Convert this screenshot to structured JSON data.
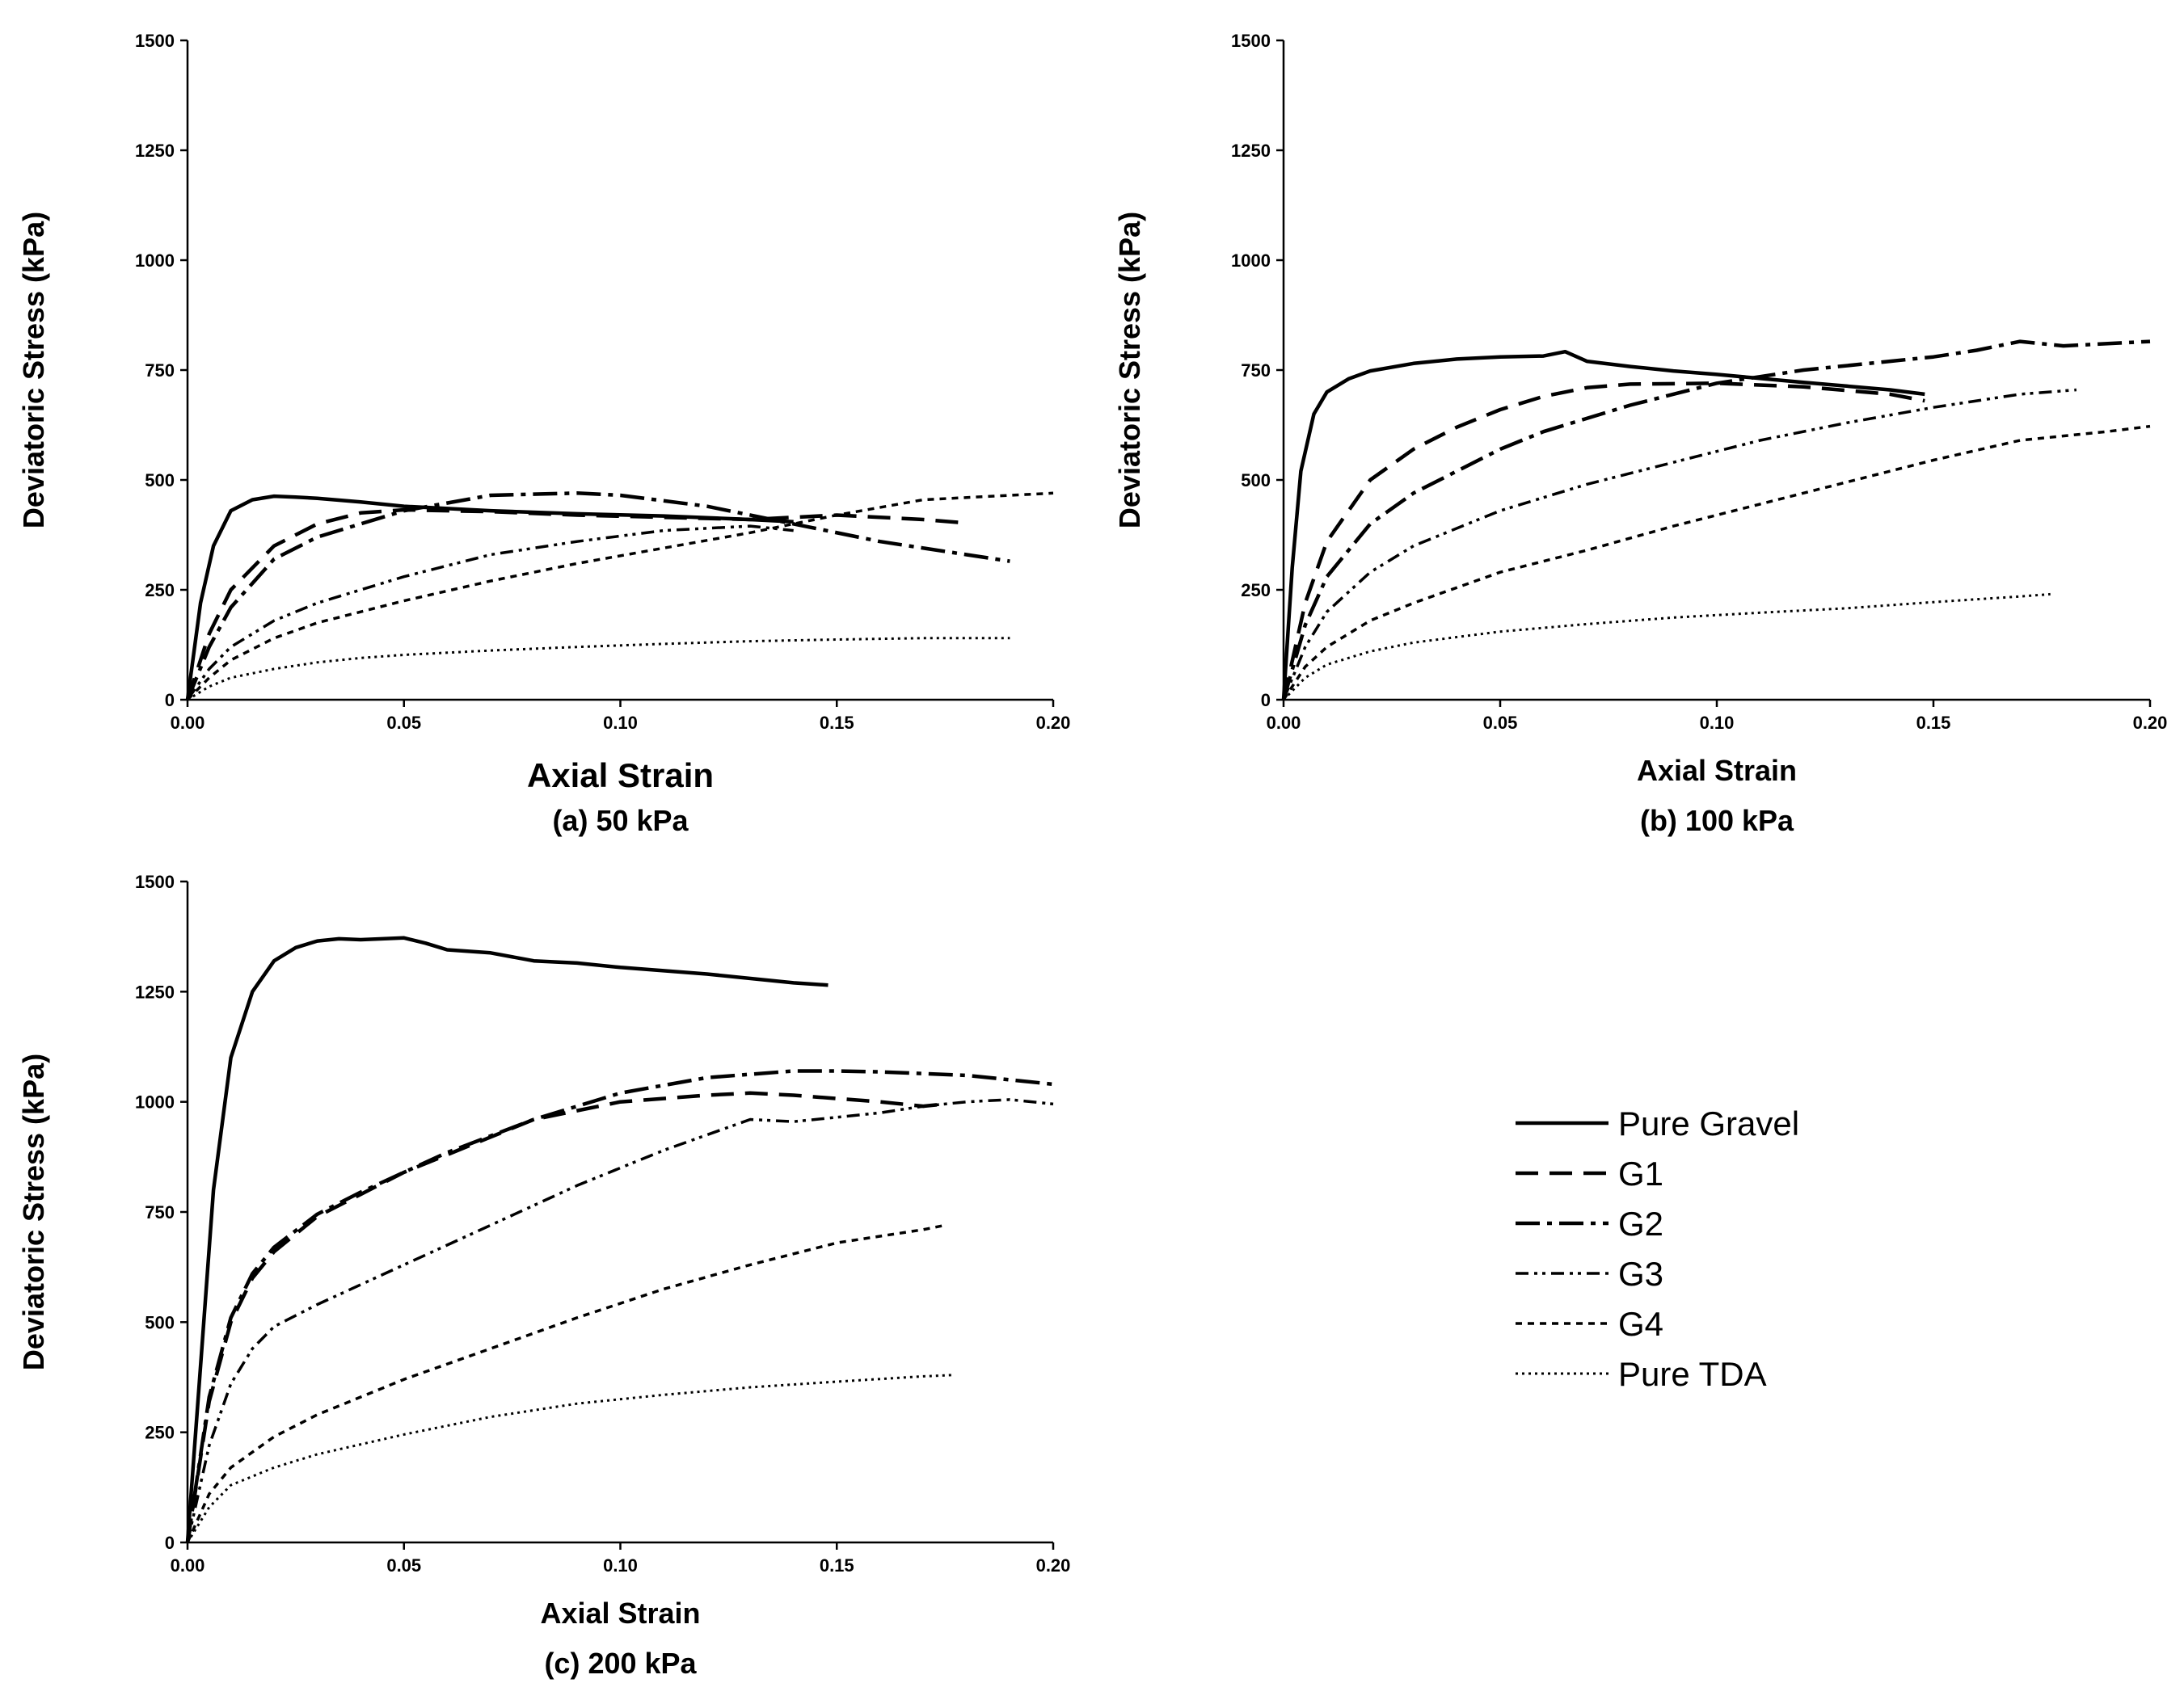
{
  "legend": [
    {
      "id": "pure_gravel",
      "label": "Pure Gravel",
      "dash": "",
      "width": 4.5
    },
    {
      "id": "g1",
      "label": "G1",
      "dash": "28 14",
      "width": 4.5
    },
    {
      "id": "g2",
      "label": "G2",
      "dash": "30 9 6 9",
      "width": 4.5
    },
    {
      "id": "g3",
      "label": "G3",
      "dash": "16 7 4 6 4 7",
      "width": 3.5
    },
    {
      "id": "g4",
      "label": "G4",
      "dash": "8 7",
      "width": 3.5
    },
    {
      "id": "pure_tda",
      "label": "Pure TDA",
      "dash": "3 5",
      "width": 3
    }
  ],
  "chart_data": [
    {
      "type": "line",
      "caption": "(a) 50 kPa",
      "xlabel": "Axial Strain",
      "ylabel": "Deviatoric Stress (kPa)",
      "xlim": [
        0,
        0.2
      ],
      "ylim": [
        0,
        1500
      ],
      "xticks": [
        "0.00",
        "0.05",
        "0.10",
        "0.15",
        "0.20"
      ],
      "yticks": [
        "0",
        "250",
        "500",
        "750",
        "1000",
        "1250",
        "1500"
      ],
      "series": [
        {
          "name": "Pure Gravel",
          "x": [
            0,
            0.003,
            0.006,
            0.01,
            0.015,
            0.02,
            0.025,
            0.03,
            0.04,
            0.05,
            0.07,
            0.09,
            0.11,
            0.13,
            0.14
          ],
          "y": [
            0,
            220,
            350,
            430,
            455,
            463,
            461,
            458,
            450,
            440,
            430,
            423,
            418,
            410,
            405
          ]
        },
        {
          "name": "G1",
          "x": [
            0,
            0.005,
            0.01,
            0.02,
            0.03,
            0.04,
            0.05,
            0.07,
            0.09,
            0.11,
            0.13,
            0.15,
            0.17,
            0.18
          ],
          "y": [
            0,
            150,
            250,
            350,
            400,
            425,
            432,
            428,
            420,
            415,
            410,
            420,
            410,
            402
          ]
        },
        {
          "name": "G2",
          "x": [
            0,
            0.005,
            0.01,
            0.02,
            0.03,
            0.05,
            0.07,
            0.09,
            0.1,
            0.12,
            0.14,
            0.16,
            0.18,
            0.19
          ],
          "y": [
            0,
            120,
            210,
            320,
            370,
            430,
            465,
            470,
            465,
            440,
            400,
            360,
            330,
            315
          ]
        },
        {
          "name": "G3",
          "x": [
            0,
            0.005,
            0.01,
            0.02,
            0.03,
            0.05,
            0.07,
            0.09,
            0.11,
            0.13,
            0.135,
            0.14
          ],
          "y": [
            0,
            70,
            120,
            180,
            220,
            280,
            330,
            360,
            385,
            395,
            390,
            385
          ]
        },
        {
          "name": "G4",
          "x": [
            0,
            0.005,
            0.01,
            0.02,
            0.03,
            0.05,
            0.07,
            0.09,
            0.11,
            0.13,
            0.15,
            0.17,
            0.2
          ],
          "y": [
            0,
            50,
            90,
            140,
            175,
            225,
            270,
            310,
            345,
            380,
            420,
            455,
            470
          ]
        },
        {
          "name": "Pure TDA",
          "x": [
            0,
            0.005,
            0.01,
            0.02,
            0.03,
            0.04,
            0.05,
            0.07,
            0.09,
            0.11,
            0.13,
            0.15,
            0.17,
            0.19
          ],
          "y": [
            0,
            30,
            50,
            70,
            85,
            95,
            102,
            112,
            120,
            127,
            133,
            137,
            140,
            140
          ]
        }
      ]
    },
    {
      "type": "line",
      "caption": "(b) 100 kPa",
      "xlabel": "Axial Strain",
      "ylabel": "Deviatoric Stress (kPa)",
      "xlim": [
        0,
        0.2
      ],
      "ylim": [
        0,
        1500
      ],
      "xticks": [
        "0.00",
        "0.05",
        "0.10",
        "0.15",
        "0.20"
      ],
      "yticks": [
        "0",
        "250",
        "500",
        "750",
        "1000",
        "1250",
        "1500"
      ],
      "series": [
        {
          "name": "Pure Gravel",
          "x": [
            0,
            0.002,
            0.004,
            0.007,
            0.01,
            0.015,
            0.02,
            0.03,
            0.04,
            0.05,
            0.06,
            0.065,
            0.07,
            0.08,
            0.09,
            0.1,
            0.12,
            0.14,
            0.148
          ],
          "y": [
            0,
            300,
            520,
            650,
            700,
            730,
            748,
            765,
            775,
            780,
            782,
            792,
            770,
            758,
            748,
            740,
            722,
            705,
            695
          ]
        },
        {
          "name": "G1",
          "x": [
            0,
            0.005,
            0.01,
            0.02,
            0.03,
            0.04,
            0.05,
            0.06,
            0.07,
            0.08,
            0.1,
            0.12,
            0.14,
            0.148
          ],
          "y": [
            0,
            220,
            360,
            500,
            570,
            620,
            660,
            690,
            710,
            718,
            720,
            712,
            695,
            680
          ]
        },
        {
          "name": "G2",
          "x": [
            0,
            0.005,
            0.01,
            0.02,
            0.03,
            0.04,
            0.05,
            0.06,
            0.08,
            0.1,
            0.12,
            0.14,
            0.15,
            0.16,
            0.17,
            0.18,
            0.2
          ],
          "y": [
            0,
            170,
            280,
            400,
            470,
            520,
            570,
            610,
            670,
            720,
            750,
            770,
            780,
            795,
            815,
            805,
            815
          ]
        },
        {
          "name": "G3",
          "x": [
            0,
            0.005,
            0.01,
            0.02,
            0.03,
            0.05,
            0.07,
            0.09,
            0.11,
            0.13,
            0.15,
            0.17,
            0.183
          ],
          "y": [
            0,
            120,
            200,
            290,
            350,
            430,
            490,
            540,
            590,
            630,
            665,
            695,
            705
          ]
        },
        {
          "name": "G4",
          "x": [
            0,
            0.005,
            0.01,
            0.02,
            0.03,
            0.05,
            0.07,
            0.09,
            0.11,
            0.13,
            0.15,
            0.17,
            0.19,
            0.2
          ],
          "y": [
            0,
            75,
            120,
            180,
            220,
            290,
            340,
            395,
            445,
            495,
            545,
            590,
            610,
            622
          ]
        },
        {
          "name": "Pure TDA",
          "x": [
            0,
            0.005,
            0.01,
            0.02,
            0.03,
            0.05,
            0.07,
            0.09,
            0.11,
            0.13,
            0.15,
            0.17,
            0.177
          ],
          "y": [
            0,
            50,
            80,
            110,
            130,
            155,
            172,
            187,
            198,
            208,
            222,
            235,
            240
          ]
        }
      ]
    },
    {
      "type": "line",
      "caption": "(c) 200 kPa",
      "xlabel": "Axial Strain",
      "ylabel": "Deviatoric Stress (kPa)",
      "xlim": [
        0,
        0.2
      ],
      "ylim": [
        0,
        1500
      ],
      "xticks": [
        "0.00",
        "0.05",
        "0.10",
        "0.15",
        "0.20"
      ],
      "yticks": [
        "0",
        "250",
        "500",
        "750",
        "1000",
        "1250",
        "1500"
      ],
      "series": [
        {
          "name": "Pure Gravel",
          "x": [
            0,
            0.003,
            0.006,
            0.01,
            0.015,
            0.02,
            0.025,
            0.03,
            0.035,
            0.04,
            0.05,
            0.055,
            0.06,
            0.07,
            0.08,
            0.09,
            0.1,
            0.12,
            0.14,
            0.148
          ],
          "y": [
            0,
            400,
            800,
            1100,
            1250,
            1320,
            1350,
            1365,
            1370,
            1368,
            1372,
            1360,
            1345,
            1338,
            1320,
            1315,
            1305,
            1290,
            1270,
            1265
          ]
        },
        {
          "name": "G1",
          "x": [
            0,
            0.005,
            0.01,
            0.015,
            0.02,
            0.03,
            0.04,
            0.05,
            0.06,
            0.07,
            0.08,
            0.1,
            0.12,
            0.13,
            0.14,
            0.16,
            0.17,
            0.175
          ],
          "y": [
            0,
            320,
            500,
            600,
            660,
            740,
            790,
            840,
            880,
            920,
            960,
            1000,
            1015,
            1020,
            1015,
            1000,
            990,
            995
          ]
        },
        {
          "name": "G2",
          "x": [
            0,
            0.005,
            0.01,
            0.015,
            0.02,
            0.03,
            0.04,
            0.05,
            0.06,
            0.08,
            0.1,
            0.12,
            0.14,
            0.15,
            0.16,
            0.18,
            0.2
          ],
          "y": [
            0,
            330,
            510,
            610,
            670,
            745,
            795,
            840,
            885,
            960,
            1020,
            1055,
            1070,
            1070,
            1068,
            1060,
            1040
          ]
        },
        {
          "name": "G3",
          "x": [
            0,
            0.005,
            0.01,
            0.015,
            0.02,
            0.03,
            0.05,
            0.07,
            0.09,
            0.11,
            0.13,
            0.14,
            0.15,
            0.16,
            0.17,
            0.18,
            0.19,
            0.2
          ],
          "y": [
            0,
            220,
            360,
            440,
            490,
            540,
            630,
            720,
            810,
            890,
            960,
            955,
            965,
            975,
            990,
            1000,
            1005,
            995
          ]
        },
        {
          "name": "G4",
          "x": [
            0,
            0.005,
            0.01,
            0.02,
            0.03,
            0.05,
            0.07,
            0.09,
            0.11,
            0.13,
            0.15,
            0.17,
            0.175
          ],
          "y": [
            0,
            110,
            170,
            240,
            290,
            370,
            440,
            510,
            575,
            630,
            680,
            710,
            720
          ]
        },
        {
          "name": "Pure TDA",
          "x": [
            0,
            0.005,
            0.01,
            0.02,
            0.03,
            0.05,
            0.07,
            0.09,
            0.11,
            0.13,
            0.15,
            0.17,
            0.177
          ],
          "y": [
            0,
            80,
            130,
            170,
            200,
            245,
            285,
            315,
            335,
            352,
            365,
            377,
            380
          ]
        }
      ]
    }
  ]
}
